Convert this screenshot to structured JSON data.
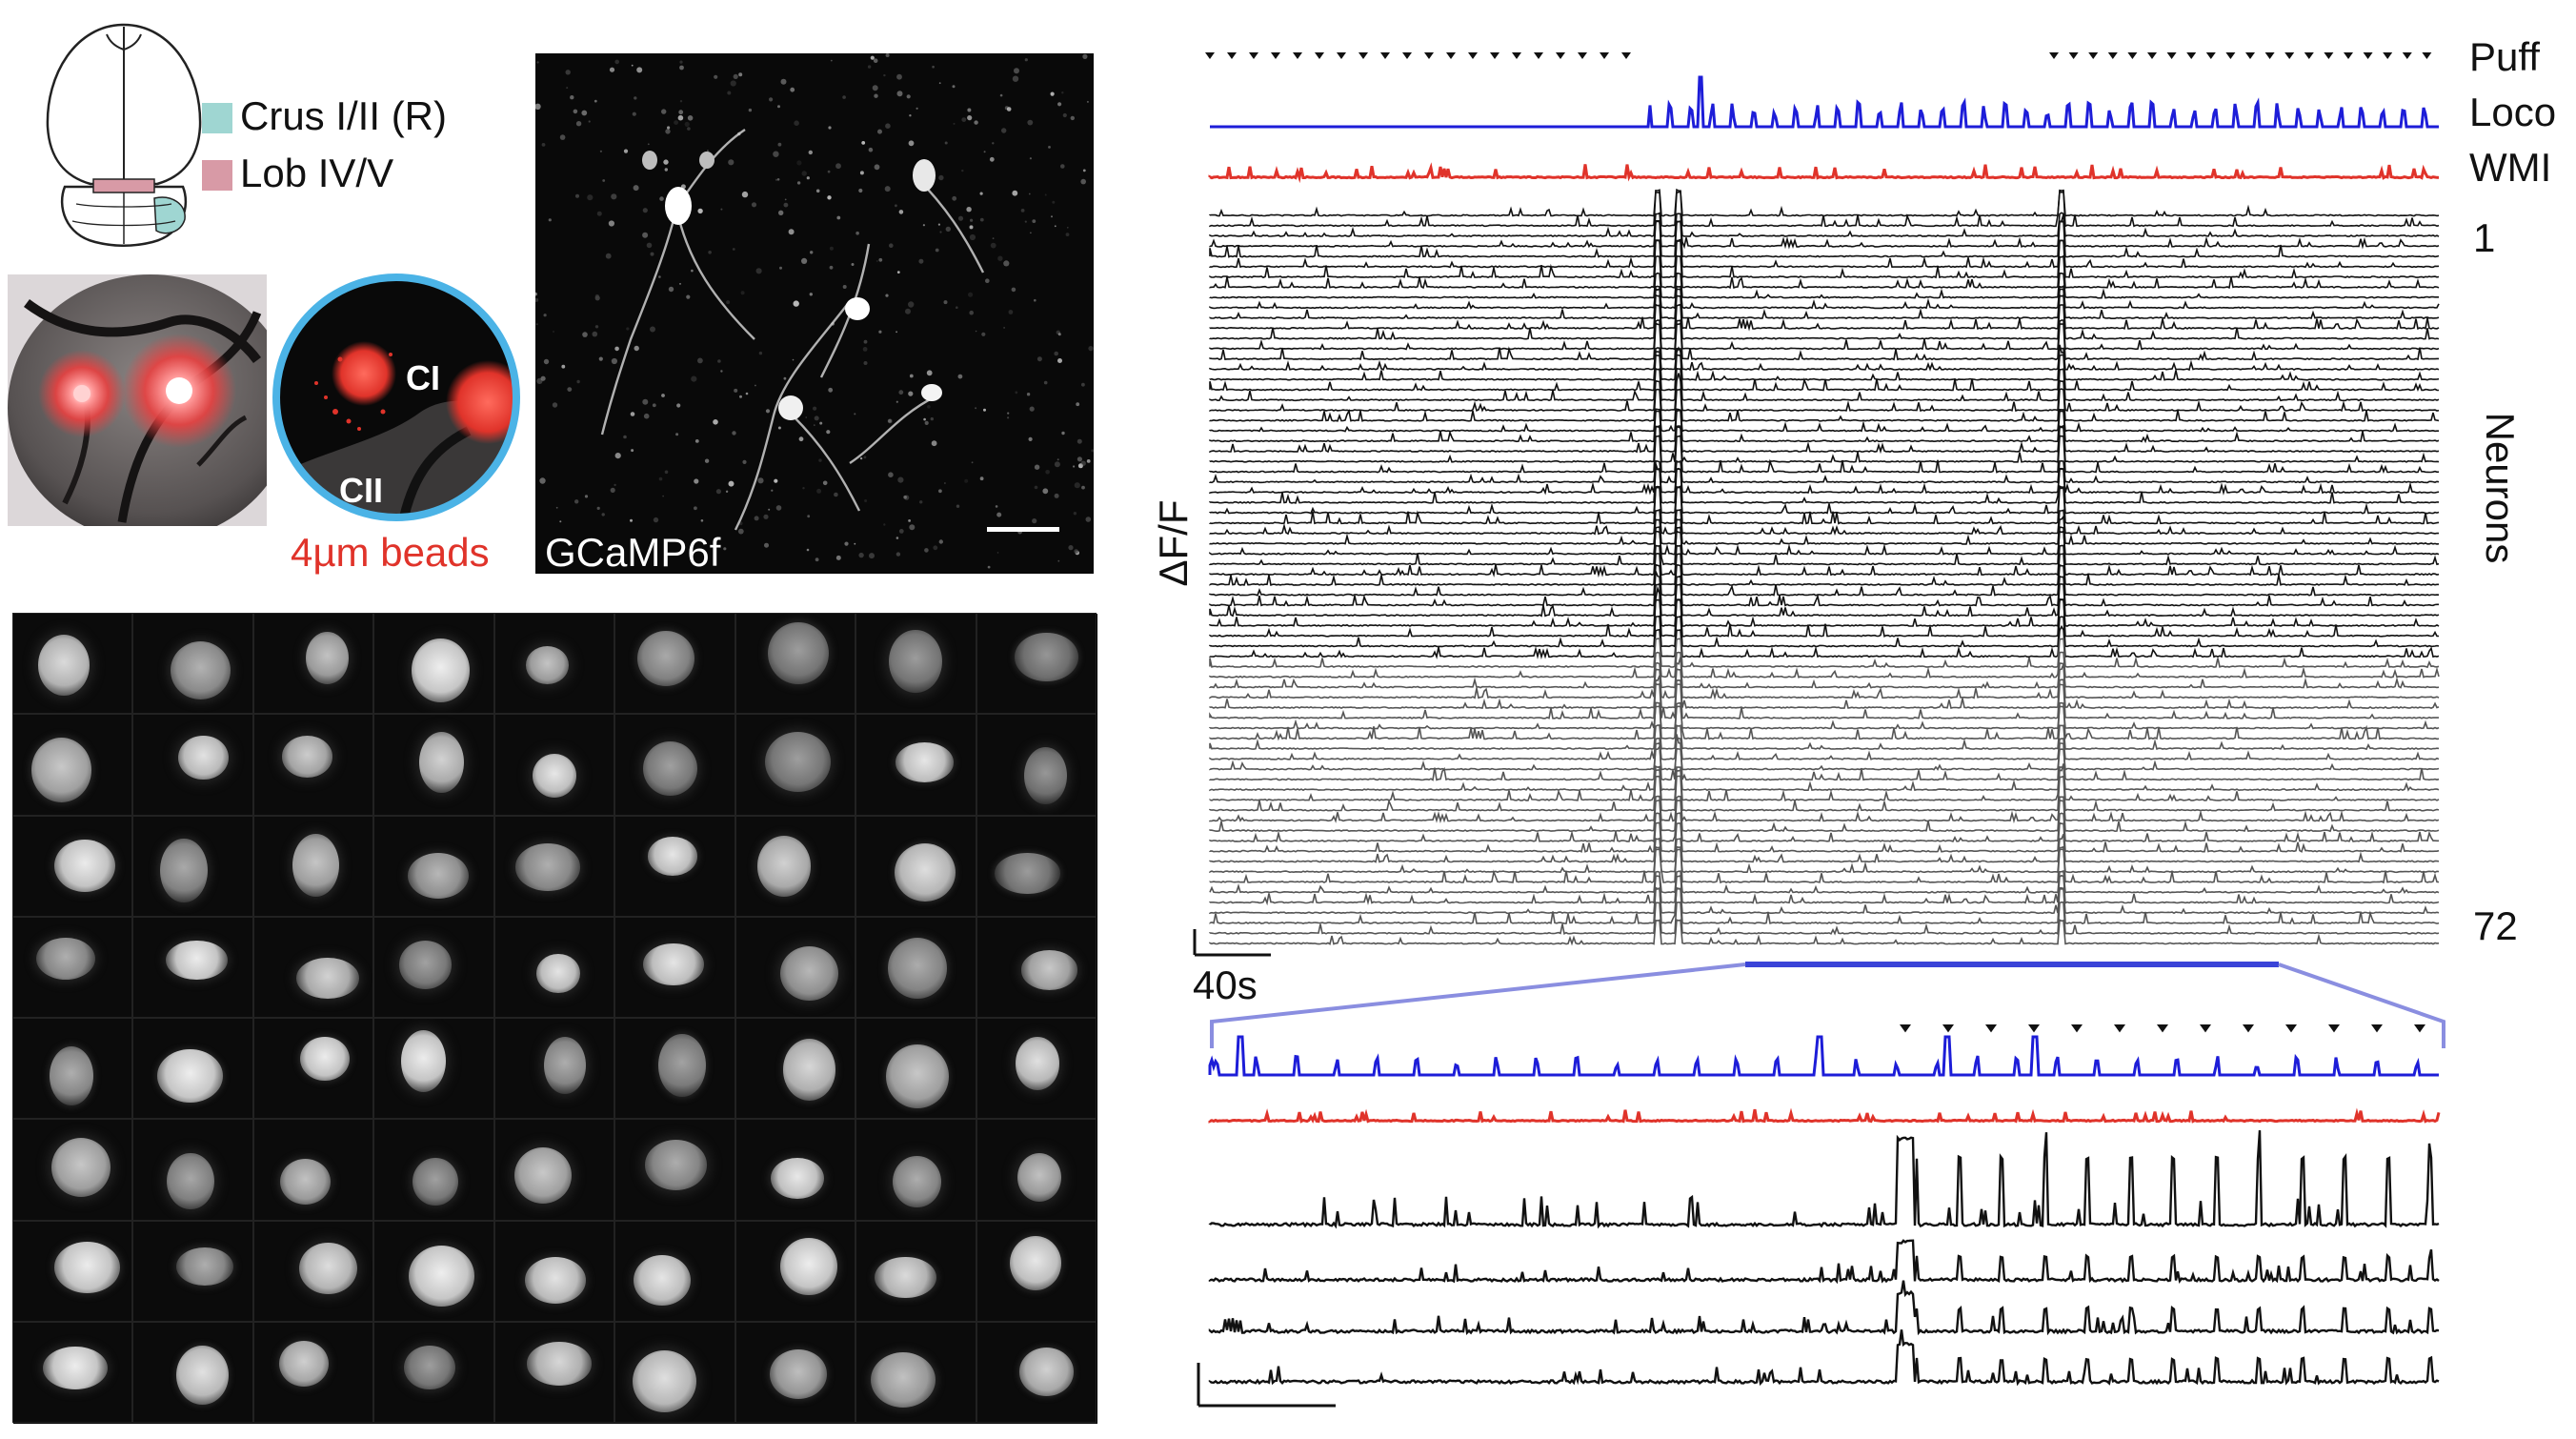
{
  "legend": {
    "crus_label": "Crus I/II (R)",
    "crus_color": "#9fd6d2",
    "lob_label": "Lob IV/V",
    "lob_color": "#d89aa6"
  },
  "inset": {
    "ci_label": "CI",
    "cii_label": "CII",
    "beads_label": "4µm beads",
    "beads_color": "#e0332a",
    "ring_color": "#4bb3e6"
  },
  "micrograph": {
    "label": "GCaMP6f"
  },
  "traces": {
    "puff_label": "Puff",
    "loco_label": "Loco",
    "wmi_label": "WMI",
    "loco_color": "#1d1dd8",
    "wmi_color": "#e0332a",
    "neuron_first": "1",
    "neuron_last": "72",
    "neurons_label": "Neurons",
    "y_label": "ΔF/F",
    "time_label": "40s",
    "neuron_count": 72,
    "zoom_color": "#8a8ee0"
  },
  "mosaic": {
    "rows": 8,
    "cols": 9
  }
}
